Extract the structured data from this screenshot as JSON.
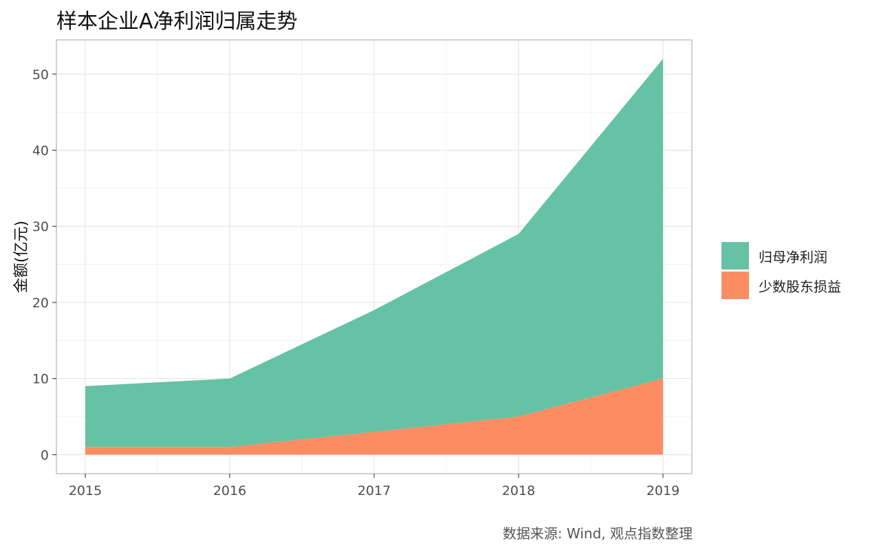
{
  "chart_data": {
    "type": "area",
    "stacked": true,
    "title": "样本企业A净利润归属走势",
    "xlabel": "",
    "ylabel": "金额(亿元)",
    "x": [
      2015,
      2016,
      2017,
      2018,
      2019
    ],
    "x_ticks": [
      "2015",
      "2016",
      "2017",
      "2018",
      "2019"
    ],
    "y_ticks": [
      "0",
      "10",
      "20",
      "30",
      "40",
      "50"
    ],
    "ylim": [
      -2.5,
      54.5
    ],
    "xlim": [
      2014.8,
      2019.2
    ],
    "grid": true,
    "legend_position": "right",
    "series": [
      {
        "name": "归母净利润",
        "values": [
          8,
          9,
          16,
          24,
          42
        ],
        "color": "#66c2a5"
      },
      {
        "name": "少数股东损益",
        "values": [
          1,
          1,
          3,
          5,
          10
        ],
        "color": "#fc8d62"
      }
    ],
    "caption": "数据来源: Wind, 观点指数整理"
  }
}
